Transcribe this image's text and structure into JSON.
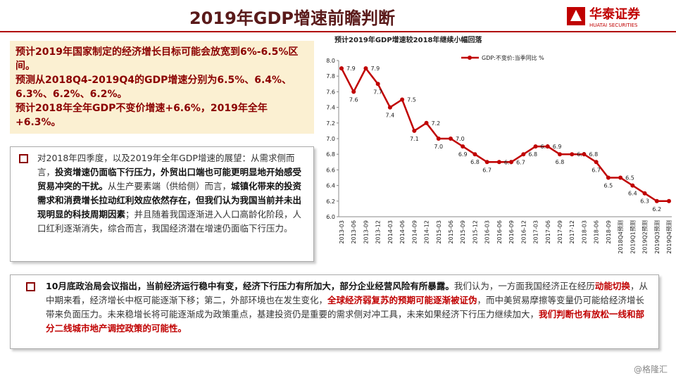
{
  "header": {
    "title": "2019年GDP增速前瞻判断",
    "logo": "华泰证券",
    "logo_sub": "HUATAI SECURITIES"
  },
  "summary": [
    "预计2019年国家制定的经济增长目标可能会放宽到6%-6.5%区间。",
    "预测从2018Q4-2019Q4的GDP增速分别为6.5%、6.4%、6.3%、6.2%、6.2%。",
    "预计2018年全年GDP不变价增速+6.6%，2019年全年+6.3%。"
  ],
  "point1": [
    {
      "text": "对2018年四季度，以及2019年全年GDP增速的展望：从需求侧而言，",
      "style": "normal"
    },
    {
      "text": "投资增速仍面临下行压力，外贸出口端也可能更明显地开始感受贸易冲突的干扰。",
      "style": "bold"
    },
    {
      "text": "从生产要素端（供给侧）而言，",
      "style": "normal"
    },
    {
      "text": "城镇化带来的投资需求和消费增长拉动红利效应依然存在，但我们认为我国当前并未出现明显的科技周期因素",
      "style": "bold"
    },
    {
      "text": "；并且随着我国逐渐进入人口高龄化阶段，人口红利逐渐消失，综合而言，我国经济潜在增速仍面临下行压力。",
      "style": "normal"
    }
  ],
  "point2": [
    {
      "text": "10月底政治局会议指出，当前经济运行稳中有变，经济下行压力有所加大，部分企业经营风险有所暴露。",
      "style": "bold"
    },
    {
      "text": "我们认为，一方面我国经济正在经历",
      "style": "normal"
    },
    {
      "text": "动能切换",
      "style": "red"
    },
    {
      "text": "，从中期来看，经济增长中枢可能逐渐下移；第二，外部环境也在发生变化，",
      "style": "normal"
    },
    {
      "text": "全球经济弱复苏的预期可能逐渐被证伪",
      "style": "red"
    },
    {
      "text": "，而中美贸易摩擦等变量仍可能给经济增长带来负面压力。未来稳增长将可能逐渐成为政策重点，基建投资仍是重要的需求侧对冲工具，未来如果经济下行压力继续加大，",
      "style": "normal"
    },
    {
      "text": "我们判断也有放松一线和部分二线城市地产调控政策的可能性。",
      "style": "red"
    }
  ],
  "footer": "@格隆汇",
  "chart_data": {
    "type": "line",
    "title": "预计2019年GDP增速较2018年继续小幅回落",
    "categories": [
      "2013-03",
      "2013-06",
      "2013-09",
      "2013-12",
      "2014-03",
      "2014-06",
      "2014-09",
      "2014-12",
      "2015-03",
      "2015-06",
      "2015-09",
      "2015-12",
      "2016-03",
      "2016-06",
      "2016-09",
      "2016-12",
      "2017-03",
      "2017-06",
      "2017-09",
      "2017-12",
      "2018-03",
      "2018-06",
      "2018-09",
      "2018Q4预测",
      "2019Q1预测",
      "2019Q2预测",
      "2019Q3预测",
      "2019Q4预测"
    ],
    "series": [
      {
        "name": "GDP:不变价:当季同比 %",
        "color": "#c00000",
        "values": [
          7.9,
          7.6,
          7.9,
          7.7,
          7.4,
          7.5,
          7.1,
          7.2,
          7,
          7,
          6.9,
          6.8,
          6.7,
          6.7,
          6.7,
          6.8,
          6.9,
          6.9,
          6.8,
          6.8,
          6.8,
          6.7,
          6.5,
          6.5,
          6.4,
          6.3,
          6.2,
          6.2
        ],
        "value_labels": [
          "7.9",
          "7.6",
          "7.9",
          "7.7",
          "7.4",
          "7.5",
          "7.1",
          "7.2",
          "7.0",
          "7.0",
          "6.9",
          "6.8",
          "6.7",
          "6.7",
          "6.7",
          "6.8",
          "6.9",
          "6.9",
          "6.8",
          "6.8",
          "6.8",
          "6.7",
          "6.5",
          "6.5",
          "6.4",
          "6.3",
          "6.2",
          "6.2"
        ]
      }
    ],
    "ylim": [
      6,
      8
    ],
    "yticks": [
      {
        "value": 6,
        "label": "6.0"
      },
      6.2,
      6.4,
      6.6,
      6.8,
      {
        "value": 7,
        "label": "7.0"
      },
      7.2,
      7.4,
      7.6,
      7.8,
      {
        "value": 8,
        "label": "8.0"
      }
    ],
    "legend": "top",
    "grid": false
  }
}
